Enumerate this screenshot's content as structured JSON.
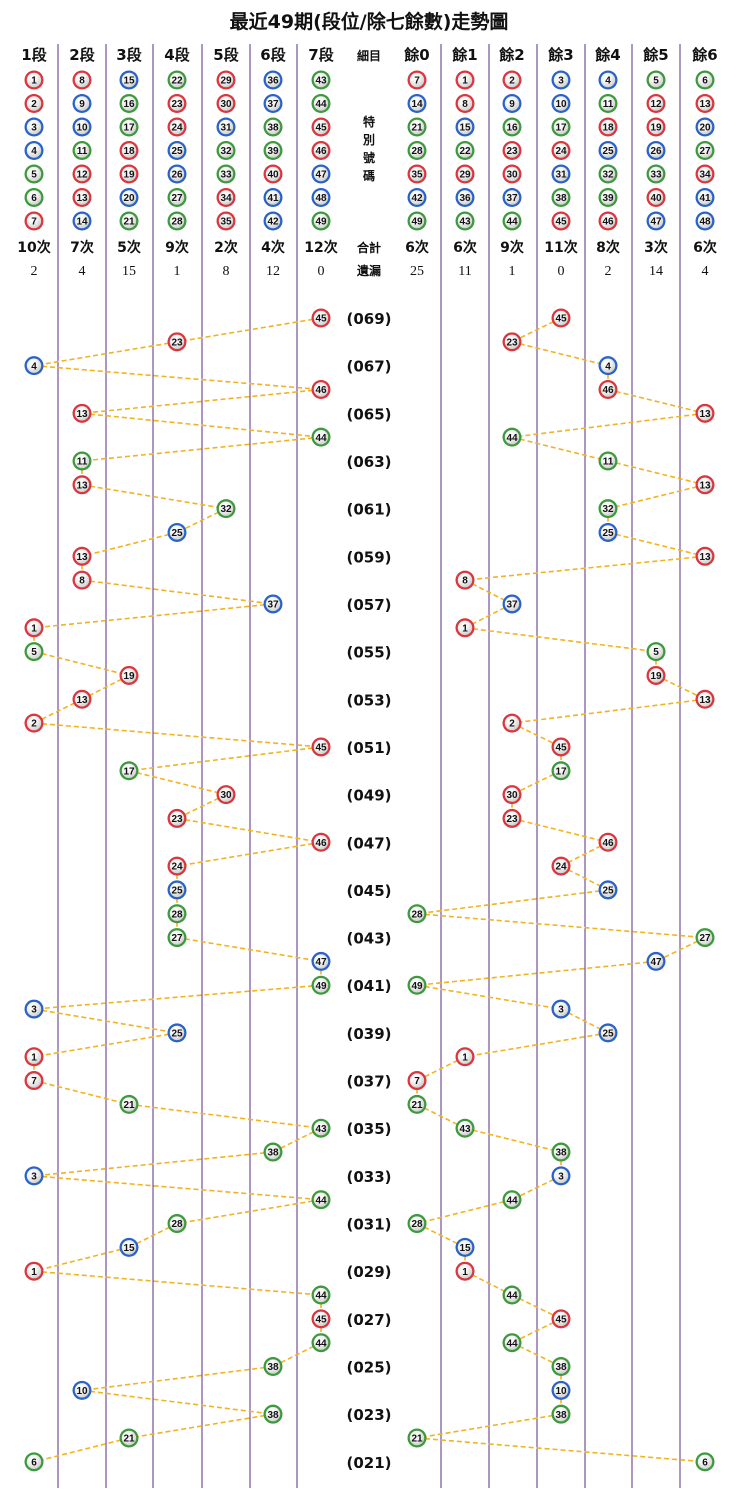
{
  "title": "最近49期(段位/除七餘數)走勢圖",
  "colors": {
    "red": "#d9363e",
    "blue": "#2a63c8",
    "green": "#3c9a3c",
    "grid": "#5d2e86",
    "line": "#f2b320"
  },
  "columns": [
    {
      "header": "1段",
      "count": "10次",
      "miss": "2",
      "numbers": [
        1,
        2,
        3,
        4,
        5,
        6,
        7
      ]
    },
    {
      "header": "2段",
      "count": "7次",
      "miss": "4",
      "numbers": [
        8,
        9,
        10,
        11,
        12,
        13,
        14
      ]
    },
    {
      "header": "3段",
      "count": "5次",
      "miss": "15",
      "numbers": [
        15,
        16,
        17,
        18,
        19,
        20,
        21
      ]
    },
    {
      "header": "4段",
      "count": "9次",
      "miss": "1",
      "numbers": [
        22,
        23,
        24,
        25,
        26,
        27,
        28
      ]
    },
    {
      "header": "5段",
      "count": "2次",
      "miss": "8",
      "numbers": [
        29,
        30,
        31,
        32,
        33,
        34,
        35
      ]
    },
    {
      "header": "6段",
      "count": "4次",
      "miss": "12",
      "numbers": [
        36,
        37,
        38,
        39,
        40,
        41,
        42
      ]
    },
    {
      "header": "7段",
      "count": "12次",
      "miss": "0",
      "numbers": [
        43,
        44,
        45,
        46,
        47,
        48,
        49
      ]
    },
    {
      "header": "餘0",
      "count": "6次",
      "miss": "25",
      "numbers": [
        7,
        14,
        21,
        28,
        35,
        42,
        49
      ]
    },
    {
      "header": "餘1",
      "count": "6次",
      "miss": "11",
      "numbers": [
        1,
        8,
        15,
        22,
        29,
        36,
        43
      ]
    },
    {
      "header": "餘2",
      "count": "9次",
      "miss": "1",
      "numbers": [
        2,
        9,
        16,
        23,
        30,
        37,
        44
      ]
    },
    {
      "header": "餘3",
      "count": "11次",
      "miss": "0",
      "numbers": [
        3,
        10,
        17,
        24,
        31,
        38,
        45
      ]
    },
    {
      "header": "餘4",
      "count": "8次",
      "miss": "2",
      "numbers": [
        4,
        11,
        18,
        25,
        32,
        39,
        46
      ]
    },
    {
      "header": "餘5",
      "count": "3次",
      "miss": "14",
      "numbers": [
        5,
        12,
        19,
        26,
        33,
        40,
        47
      ]
    },
    {
      "header": "餘6",
      "count": "6次",
      "miss": "4",
      "numbers": [
        6,
        13,
        20,
        27,
        34,
        41,
        48
      ]
    }
  ],
  "middle": {
    "detail_label": "細目",
    "special_label": [
      "特",
      "別",
      "號",
      "碼"
    ],
    "total_label": "合計",
    "miss_label": "遺漏"
  },
  "draw_labels": [
    "(069)",
    "(067)",
    "(065)",
    "(063)",
    "(061)",
    "(059)",
    "(057)",
    "(055)",
    "(053)",
    "(051)",
    "(049)",
    "(047)",
    "(045)",
    "(043)",
    "(041)",
    "(039)",
    "(037)",
    "(035)",
    "(033)",
    "(031)",
    "(029)",
    "(027)",
    "(025)",
    "(023)",
    "(021)"
  ],
  "chart_data": {
    "type": "table",
    "title": "最近49期(段位/除七餘數)走勢圖",
    "series": [
      {
        "name": "段位",
        "values": [
          45,
          23,
          4,
          46,
          13,
          44,
          11,
          13,
          32,
          25,
          13,
          8,
          37,
          1,
          5,
          19,
          13,
          2,
          45,
          17,
          30,
          23,
          46,
          24,
          25,
          28,
          27,
          47,
          49,
          3,
          25,
          1,
          7,
          21,
          43,
          38,
          3,
          44,
          28,
          15,
          1,
          44,
          45,
          44,
          38,
          10,
          38,
          21,
          6
        ]
      },
      {
        "name": "除七餘數",
        "values": [
          45,
          23,
          4,
          46,
          13,
          44,
          11,
          13,
          32,
          25,
          13,
          8,
          37,
          1,
          5,
          19,
          13,
          2,
          45,
          17,
          30,
          23,
          46,
          24,
          25,
          28,
          27,
          47,
          49,
          3,
          25,
          1,
          7,
          21,
          43,
          38,
          3,
          44,
          28,
          15,
          1,
          44,
          45,
          44,
          38,
          10,
          38,
          21,
          6
        ]
      }
    ]
  }
}
